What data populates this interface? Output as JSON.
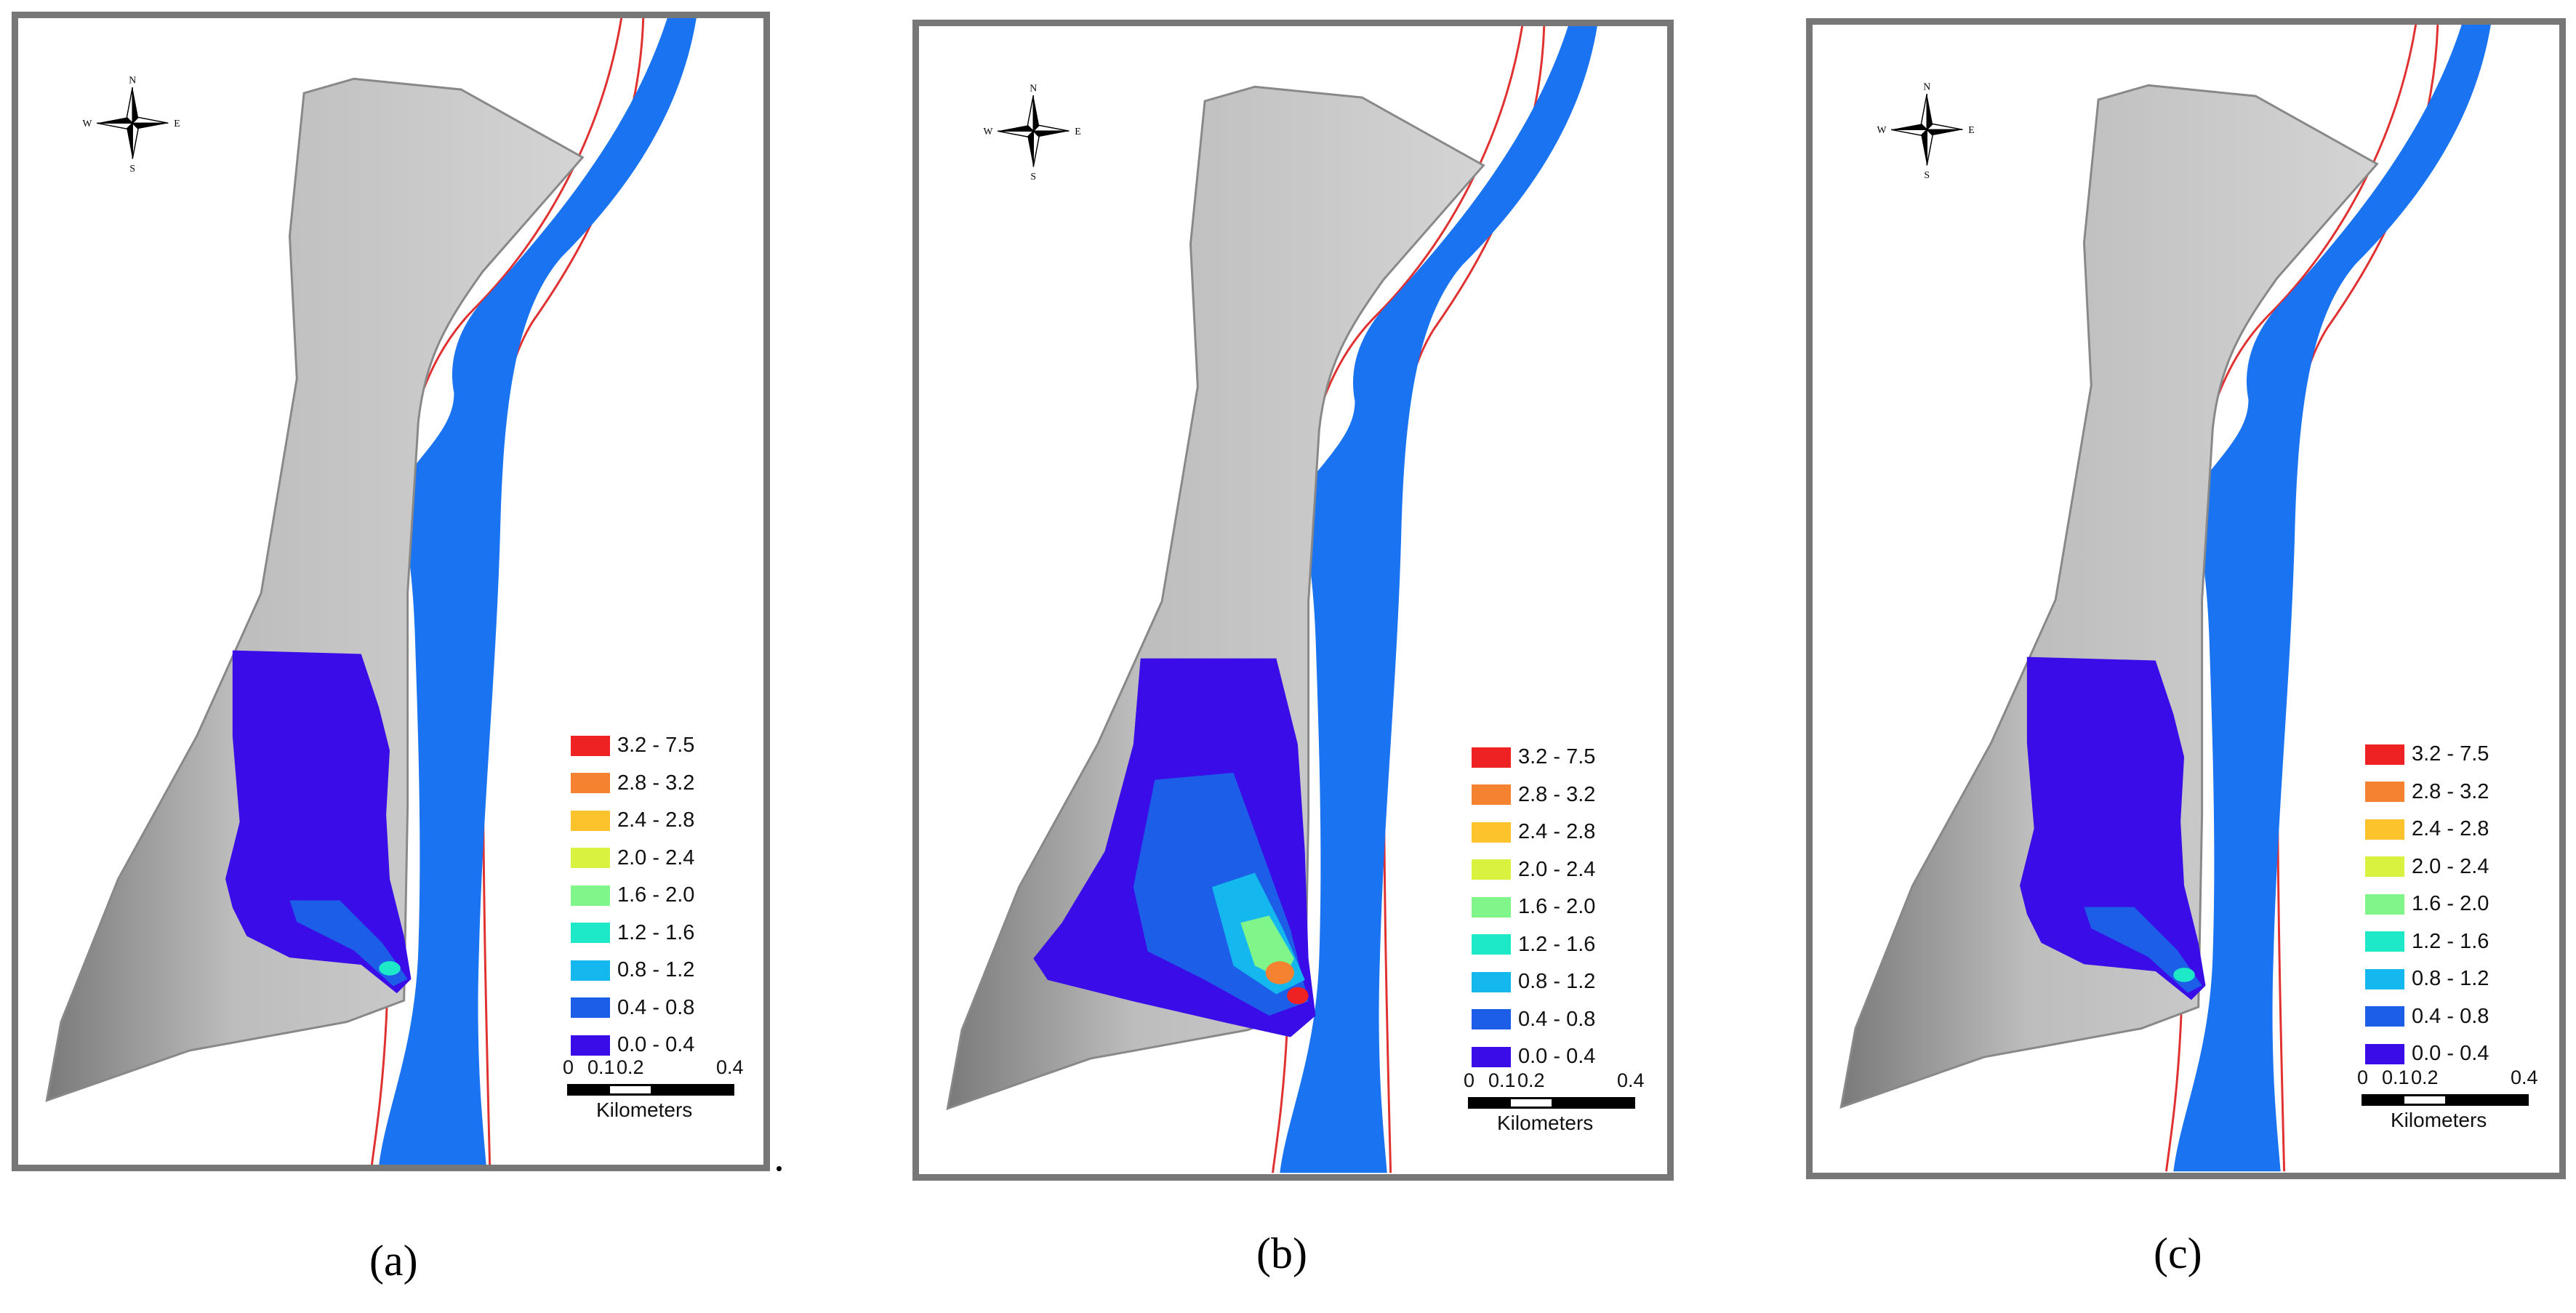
{
  "panels": [
    {
      "id": "a",
      "caption": "(a)",
      "compass": {
        "north": "N",
        "south": "S",
        "east": "E",
        "west": "W"
      },
      "legend": [
        {
          "label": "3.2  -  7.5",
          "color": "#ee2222"
        },
        {
          "label": "2.8  -  3.2",
          "color": "#f58230"
        },
        {
          "label": "2.4  -  2.8",
          "color": "#fcc32c"
        },
        {
          "label": "2.0  -  2.4",
          "color": "#d9f23f"
        },
        {
          "label": "1.6  -  2.0",
          "color": "#7ff58a"
        },
        {
          "label": "1.2  -  1.6",
          "color": "#1de8c8"
        },
        {
          "label": "0.8  -  1.2",
          "color": "#14b8ee"
        },
        {
          "label": "0.4  -  0.8",
          "color": "#1d5ee8"
        },
        {
          "label": "0.0  -  0.4",
          "color": "#3a0ce8"
        }
      ],
      "scale": {
        "ticks": [
          "0",
          "0.1",
          "0.2",
          "0.4"
        ],
        "unit": "Kilometers"
      }
    },
    {
      "id": "b",
      "caption": "(b)",
      "compass": {
        "north": "N",
        "south": "S",
        "east": "E",
        "west": "W"
      },
      "legend": [
        {
          "label": "3.2  -  7.5",
          "color": "#ee2222"
        },
        {
          "label": "2.8  -  3.2",
          "color": "#f58230"
        },
        {
          "label": "2.4  -  2.8",
          "color": "#fcc32c"
        },
        {
          "label": "2.0  -  2.4",
          "color": "#d9f23f"
        },
        {
          "label": "1.6  -  2.0",
          "color": "#7ff58a"
        },
        {
          "label": "1.2  -  1.6",
          "color": "#1de8c8"
        },
        {
          "label": "0.8  -  1.2",
          "color": "#14b8ee"
        },
        {
          "label": "0.4  -  0.8",
          "color": "#1d5ee8"
        },
        {
          "label": "0.0  -  0.4",
          "color": "#3a0ce8"
        }
      ],
      "scale": {
        "ticks": [
          "0",
          "0.1",
          "0.2",
          "0.4"
        ],
        "unit": "Kilometers"
      }
    },
    {
      "id": "c",
      "caption": "(c)",
      "compass": {
        "north": "N",
        "south": "S",
        "east": "E",
        "west": "W"
      },
      "legend": [
        {
          "label": "3.2  -  7.5",
          "color": "#ee2222"
        },
        {
          "label": "2.8  -  3.2",
          "color": "#f58230"
        },
        {
          "label": "2.4  -  2.8",
          "color": "#fcc32c"
        },
        {
          "label": "2.0  -  2.4",
          "color": "#d9f23f"
        },
        {
          "label": "1.6  -  2.0",
          "color": "#7ff58a"
        },
        {
          "label": "1.2  -  1.6",
          "color": "#1de8c8"
        },
        {
          "label": "0.8  -  1.2",
          "color": "#14b8ee"
        },
        {
          "label": "0.4  -  0.8",
          "color": "#1d5ee8"
        },
        {
          "label": "0.0  -  0.4",
          "color": "#3a0ce8"
        }
      ],
      "scale": {
        "ticks": [
          "0",
          "0.1",
          "0.2",
          "0.4"
        ],
        "unit": "Kilometers"
      }
    }
  ],
  "colors": {
    "river": "#1a73f0",
    "river_boundary": "#e03030",
    "terrain": "#c8c8c8",
    "frame": "#777777"
  }
}
